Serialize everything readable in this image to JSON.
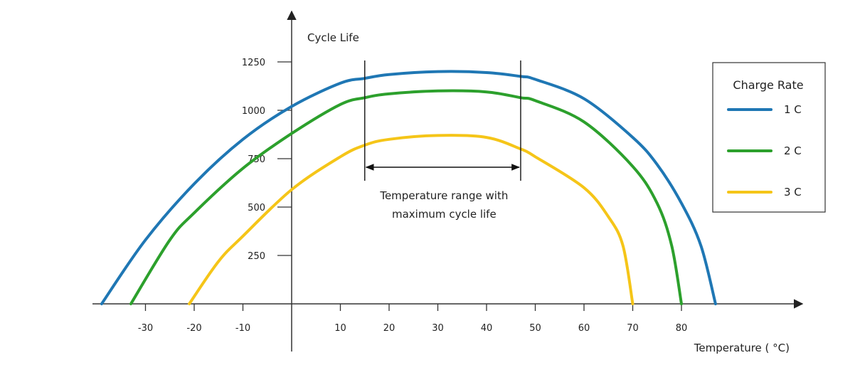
{
  "chart_data": {
    "type": "line",
    "xlabel": "Temperature ( °C)",
    "ylabel": "Cycle Life",
    "xlim": [
      -40,
      104
    ],
    "ylim": [
      0,
      1250
    ],
    "x_ticks": [
      -30,
      -20,
      -10,
      10,
      20,
      30,
      40,
      50,
      60,
      70,
      80
    ],
    "y_ticks": [
      250,
      500,
      750,
      1000,
      1250
    ],
    "legend": {
      "title": "Charge Rate",
      "position": "right",
      "entries": [
        "1 C",
        "2 C",
        "3 C"
      ]
    },
    "series": [
      {
        "name": "1 C",
        "color": "#1f77b4",
        "x": [
          -39,
          -30,
          -20,
          -10,
          0,
          10,
          15,
          20,
          30,
          40,
          47,
          50,
          60,
          70,
          75,
          80,
          84,
          87
        ],
        "y": [
          0,
          330,
          620,
          850,
          1020,
          1140,
          1165,
          1185,
          1200,
          1195,
          1175,
          1160,
          1060,
          860,
          720,
          520,
          300,
          0
        ]
      },
      {
        "name": "2 C",
        "color": "#2ca02c",
        "x": [
          -33,
          -25,
          -20,
          -10,
          0,
          10,
          15,
          20,
          30,
          40,
          47,
          50,
          60,
          70,
          75,
          78,
          80
        ],
        "y": [
          0,
          330,
          470,
          700,
          880,
          1030,
          1065,
          1085,
          1100,
          1095,
          1065,
          1050,
          940,
          710,
          520,
          300,
          0
        ]
      },
      {
        "name": "3 C",
        "color": "#f5c518",
        "x": [
          -21,
          -15,
          -10,
          0,
          10,
          15,
          20,
          30,
          40,
          47,
          50,
          60,
          65,
          68,
          70
        ],
        "y": [
          0,
          220,
          350,
          590,
          760,
          820,
          850,
          870,
          860,
          800,
          760,
          600,
          450,
          300,
          0
        ]
      }
    ],
    "annotations": [
      {
        "type": "range-arrow",
        "x_start": 15,
        "x_end": 47,
        "y": 700,
        "text": [
          "Temperature range with",
          "maximum cycle life"
        ]
      }
    ]
  }
}
